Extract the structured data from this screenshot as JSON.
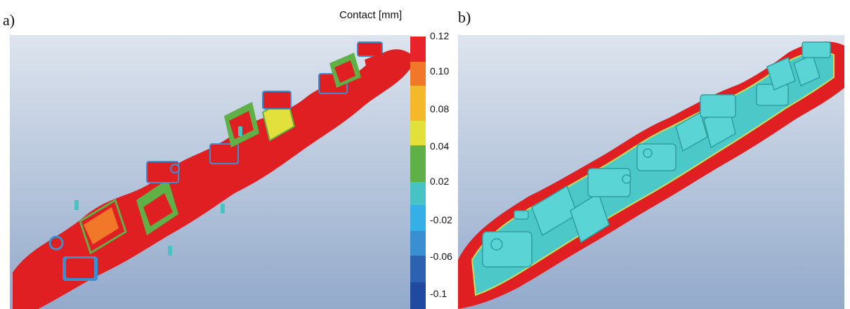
{
  "panels": [
    {
      "label": "a)"
    },
    {
      "label": "b)"
    }
  ],
  "legend": {
    "title": "Contact [mm]",
    "bands": [
      {
        "value": "0.12",
        "color": "#e8242a"
      },
      {
        "value": "0.10",
        "color": "#f07828"
      },
      {
        "value": "0.08",
        "color": "#f5b82a"
      },
      {
        "value": "0.04",
        "color": "#e2e03a"
      },
      {
        "value": "0.02",
        "color": "#5fb046"
      },
      {
        "value": "-0.02",
        "color": "#48c3c4"
      },
      {
        "value": "-0.06",
        "color": "#35b0e6"
      },
      {
        "value": "-0.1",
        "color": "#3a8fd0"
      }
    ],
    "extra_colors": [
      "#2c62b0",
      "#1f4aa0"
    ]
  },
  "colors": {
    "background_top": "#d9e1ec",
    "background_bottom": "#93aacb",
    "contact_red": "#e01f22",
    "mold_cyan": "#4cc8c9"
  }
}
